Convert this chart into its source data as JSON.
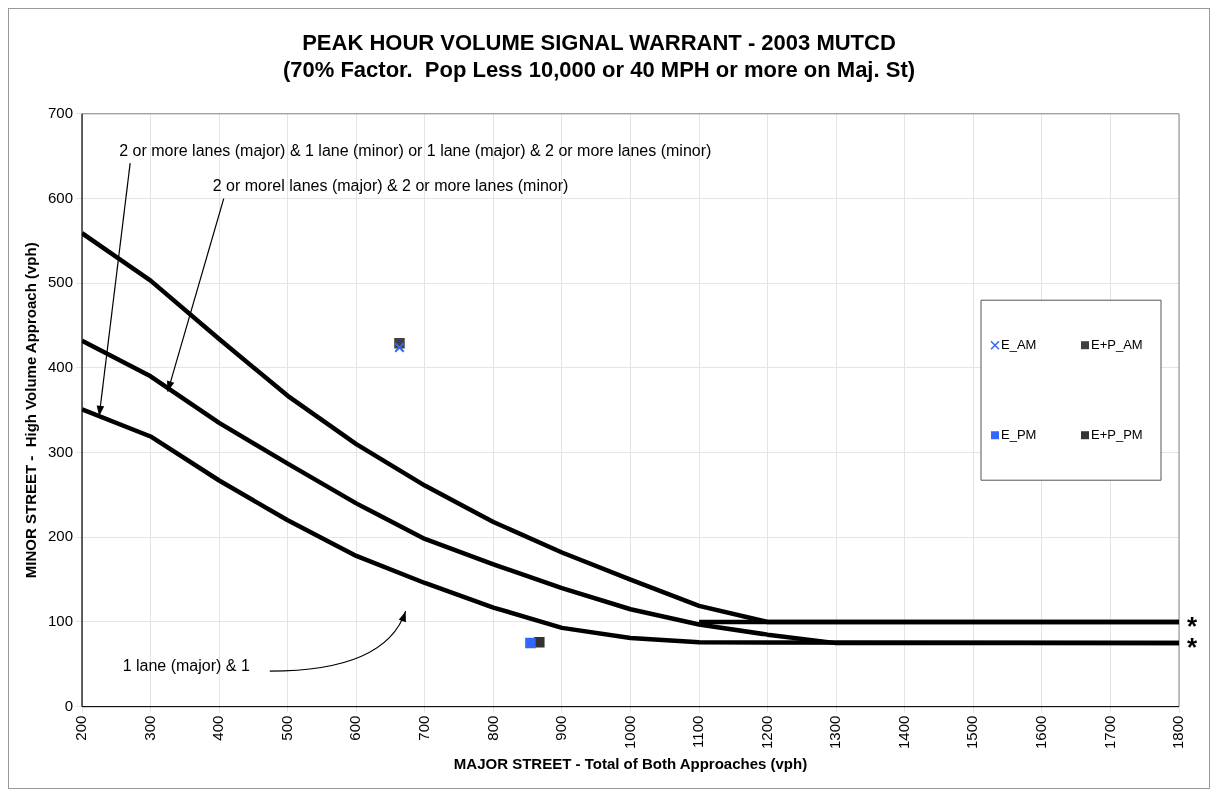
{
  "chart_data": {
    "type": "line",
    "title": "PEAK HOUR VOLUME SIGNAL WARRANT - 2003 MUTCD\n(70% Factor.  Pop Less 10,000 or 40 MPH or more on Maj. St)",
    "xlabel": "MAJOR STREET - Total of Both Approaches (vph)",
    "ylabel": "MINOR STREET -  High Volume Approach (vph)",
    "xlim": [
      200,
      1800
    ],
    "xticks": [
      200,
      300,
      400,
      500,
      600,
      700,
      800,
      900,
      1000,
      1100,
      1200,
      1300,
      1400,
      1500,
      1600,
      1700,
      1800
    ],
    "ylim": [
      0,
      700
    ],
    "yticks": [
      0,
      100,
      200,
      300,
      400,
      500,
      600,
      700
    ],
    "grid": true,
    "legend": "right",
    "series": [
      {
        "color": "#000000",
        "marker": "none",
        "x": [
          200,
          300,
          400,
          500,
          600,
          700,
          800,
          900,
          1000,
          1100,
          1200,
          1800
        ],
        "values": [
          559,
          503,
          434,
          367,
          310,
          261,
          218,
          182,
          150,
          119,
          100,
          100
        ]
      },
      {
        "color": "#000000",
        "marker": "none",
        "x": [
          200,
          300,
          400,
          500,
          600,
          700,
          800,
          900,
          1000,
          1100,
          1200,
          1300,
          1800
        ],
        "values": [
          432,
          390,
          335,
          287,
          240,
          198,
          168,
          140,
          115,
          97,
          85,
          75,
          75
        ]
      },
      {
        "color": "#000000",
        "marker": "none",
        "x": [
          200,
          300,
          400,
          500,
          600,
          700,
          800,
          900,
          1000,
          1100,
          1800
        ],
        "values": [
          351,
          319,
          267,
          220,
          178,
          146,
          117,
          93,
          81,
          76,
          75
        ]
      },
      {
        "color": "#000000",
        "marker": "none",
        "x": [
          1100,
          1800
        ],
        "values": [
          100,
          100
        ]
      },
      {
        "type": "scatter",
        "name": "E_AM",
        "color": "#3366ff",
        "marker": "cross",
        "x": [
          663
        ],
        "values": [
          424
        ]
      },
      {
        "type": "scatter",
        "name": "E+P_AM",
        "color": "#404040",
        "marker": "square",
        "x": [
          663
        ],
        "values": [
          429
        ]
      },
      {
        "type": "scatter",
        "name": "E_PM",
        "color": "#3366ff",
        "marker": "square",
        "x": [
          854
        ],
        "values": [
          75
        ]
      },
      {
        "type": "scatter",
        "name": "E+P_PM",
        "color": "#333333",
        "marker": "square",
        "x": [
          867
        ],
        "values": [
          76
        ]
      }
    ],
    "annotations": [
      {
        "text": "2 or more lanes (major) & 1 lane (minor) or 1 lane (major) & 2 or more lanes (minor)",
        "x": 225,
        "y": 343
      },
      {
        "text": "2 or morel lanes (major) & 2 or more lanes (minor)",
        "x": 325,
        "y": 372
      },
      "1 lane (major) & 1",
      {
        "text": "*",
        "x": 1800,
        "y": 100
      },
      {
        "text": "*",
        "x": 1800,
        "y": 75
      }
    ]
  }
}
